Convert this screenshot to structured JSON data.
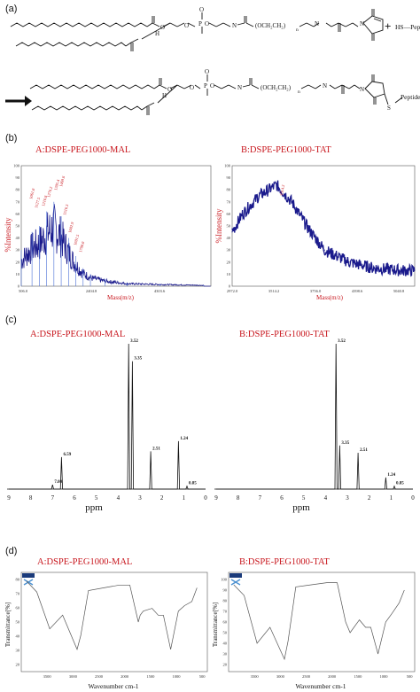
{
  "panels": {
    "a": {
      "label": "(a)",
      "reagent_plus": "+",
      "reagent_label": "HS—Peptide TAT",
      "subscript_n": "n",
      "product_label": "Peptide TAT",
      "atoms": {
        "H": "H",
        "O": "O",
        "P": "P",
        "N": "N",
        "S": "S"
      },
      "peg_text": "(OCH₂CH₂)",
      "colors": {
        "arrow": "#111111"
      }
    },
    "b": {
      "label": "(b)",
      "left": {
        "title": "A:DSPE-PEG1000-MAL",
        "ylabel": "%Intensity",
        "xlabel": "Mass(m/z)",
        "yticks": [
          "100",
          "90",
          "80",
          "70",
          "60",
          "50",
          "40",
          "30",
          "20",
          "10",
          "0"
        ],
        "xticks": [
          "506.0",
          "2404.8",
          "4303.6"
        ]
      },
      "right": {
        "title": "B:DSPE-PEG1000-TAT",
        "ylabel": "%Intensity",
        "xlabel": "Mass(m/z)",
        "yticks": [
          "100",
          "90",
          "80",
          "70",
          "60",
          "50",
          "40",
          "30",
          "20",
          "10",
          "0"
        ],
        "xticks": [
          "2972.0",
          "3514.2",
          "3756.0",
          "4398.6",
          "5040.8"
        ],
        "peak_label": "3514.2"
      }
    },
    "c": {
      "label": "(c)",
      "left": {
        "title": "A:DSPE-PEG1000-MAL",
        "xlabel": "ppm",
        "xticks": [
          "9",
          "8",
          "7",
          "6",
          "5",
          "4",
          "3",
          "2",
          "1",
          "0"
        ],
        "peaks": [
          {
            "ppm": 7.0,
            "label": "7.00"
          },
          {
            "ppm": 6.59,
            "label": "6.59"
          },
          {
            "ppm": 3.52,
            "label": "3.52"
          },
          {
            "ppm": 3.35,
            "label": "3.35"
          },
          {
            "ppm": 2.51,
            "label": "2.51"
          },
          {
            "ppm": 1.24,
            "label": "1.24"
          },
          {
            "ppm": 0.85,
            "label": "0.85"
          }
        ]
      },
      "right": {
        "title": "B:DSPE-PEG1000-TAT",
        "xlabel": "ppm",
        "xticks": [
          "9",
          "8",
          "7",
          "6",
          "5",
          "4",
          "3",
          "2",
          "1",
          "0"
        ],
        "peaks": [
          {
            "ppm": 3.52,
            "label": "3.52"
          },
          {
            "ppm": 3.35,
            "label": "3.35"
          },
          {
            "ppm": 2.51,
            "label": "2.51"
          },
          {
            "ppm": 1.24,
            "label": "1.24"
          },
          {
            "ppm": 0.85,
            "label": "0.85"
          }
        ]
      }
    },
    "d": {
      "label": "(d)",
      "left": {
        "title": "A:DSPE-PEG1000-MAL",
        "ylabel": "Transmittance[%]",
        "xlabel": "Wavenumber cm-1",
        "xticks": [
          "3500",
          "3000",
          "2500",
          "2000",
          "1500",
          "1000",
          "500"
        ],
        "yticks": [
          "80",
          "70",
          "60",
          "50",
          "40",
          "30",
          "20"
        ]
      },
      "right": {
        "title": "B:DSPE-PEG1000-TAT",
        "ylabel": "Transmittance[%]",
        "xlabel": "Wavenumber cm-1",
        "xticks": [
          "3500",
          "3000",
          "2500",
          "2000",
          "1500",
          "1000",
          "500"
        ],
        "yticks": [
          "100",
          "90",
          "80",
          "70",
          "60",
          "50",
          "40",
          "30",
          "20"
        ]
      }
    }
  },
  "chart_data": [
    {
      "type": "line",
      "title": "A:DSPE-PEG1000-MAL",
      "xlabel": "Mass(m/z)",
      "ylabel": "%Intensity",
      "xlim": [
        506.0,
        5700
      ],
      "ylim": [
        0,
        100
      ],
      "x": [
        506,
        800,
        1000,
        1200,
        1400,
        1600,
        1800,
        2000,
        2200,
        2400,
        2800,
        3400,
        4303.6,
        5500
      ],
      "y": [
        30,
        45,
        50,
        62,
        70,
        58,
        40,
        25,
        15,
        10,
        6,
        3,
        2,
        1
      ]
    },
    {
      "type": "line",
      "title": "B:DSPE-PEG1000-TAT",
      "xlabel": "Mass(m/z)",
      "ylabel": "%Intensity",
      "xlim": [
        2972.0,
        5200
      ],
      "ylim": [
        0,
        100
      ],
      "x": [
        2972,
        3100,
        3300,
        3514.2,
        3700,
        3900,
        4100,
        4398.6,
        4700,
        5040.8
      ],
      "y": [
        45,
        60,
        75,
        84,
        70,
        48,
        30,
        20,
        15,
        13
      ]
    },
    {
      "type": "line",
      "title": "A:DSPE-PEG1000-MAL",
      "xlabel": "ppm",
      "x": [
        7.0,
        6.59,
        3.52,
        3.35,
        2.51,
        1.24,
        0.85
      ],
      "y": [
        3,
        22,
        100,
        88,
        26,
        33,
        2
      ]
    },
    {
      "type": "line",
      "title": "B:DSPE-PEG1000-TAT",
      "xlabel": "ppm",
      "x": [
        3.52,
        3.35,
        2.51,
        1.24,
        0.85
      ],
      "y": [
        100,
        30,
        25,
        8,
        2
      ]
    },
    {
      "type": "line",
      "title": "A:DSPE-PEG1000-MAL",
      "xlabel": "Wavenumber cm-1",
      "ylabel": "Transmittance[%]",
      "x": [
        3900,
        3700,
        3450,
        3200,
        2920,
        2850,
        2700,
        2400,
        2100,
        1900,
        1735,
        1700,
        1640,
        1470,
        1350,
        1250,
        1110,
        960,
        840,
        700,
        600
      ],
      "y": [
        80,
        72,
        45,
        55,
        30,
        40,
        73,
        75,
        77,
        77,
        50,
        55,
        58,
        60,
        55,
        55,
        30,
        58,
        62,
        65,
        75
      ]
    },
    {
      "type": "line",
      "title": "B:DSPE-PEG1000-TAT",
      "xlabel": "Wavenumber cm-1",
      "ylabel": "Transmittance[%]",
      "x": [
        3900,
        3700,
        3450,
        3200,
        2920,
        2850,
        2700,
        2400,
        2100,
        1900,
        1735,
        1650,
        1470,
        1350,
        1250,
        1110,
        960,
        840,
        700,
        600
      ],
      "y": [
        95,
        85,
        40,
        55,
        25,
        42,
        93,
        95,
        97,
        97,
        60,
        50,
        62,
        55,
        55,
        30,
        60,
        68,
        78,
        90
      ]
    }
  ]
}
